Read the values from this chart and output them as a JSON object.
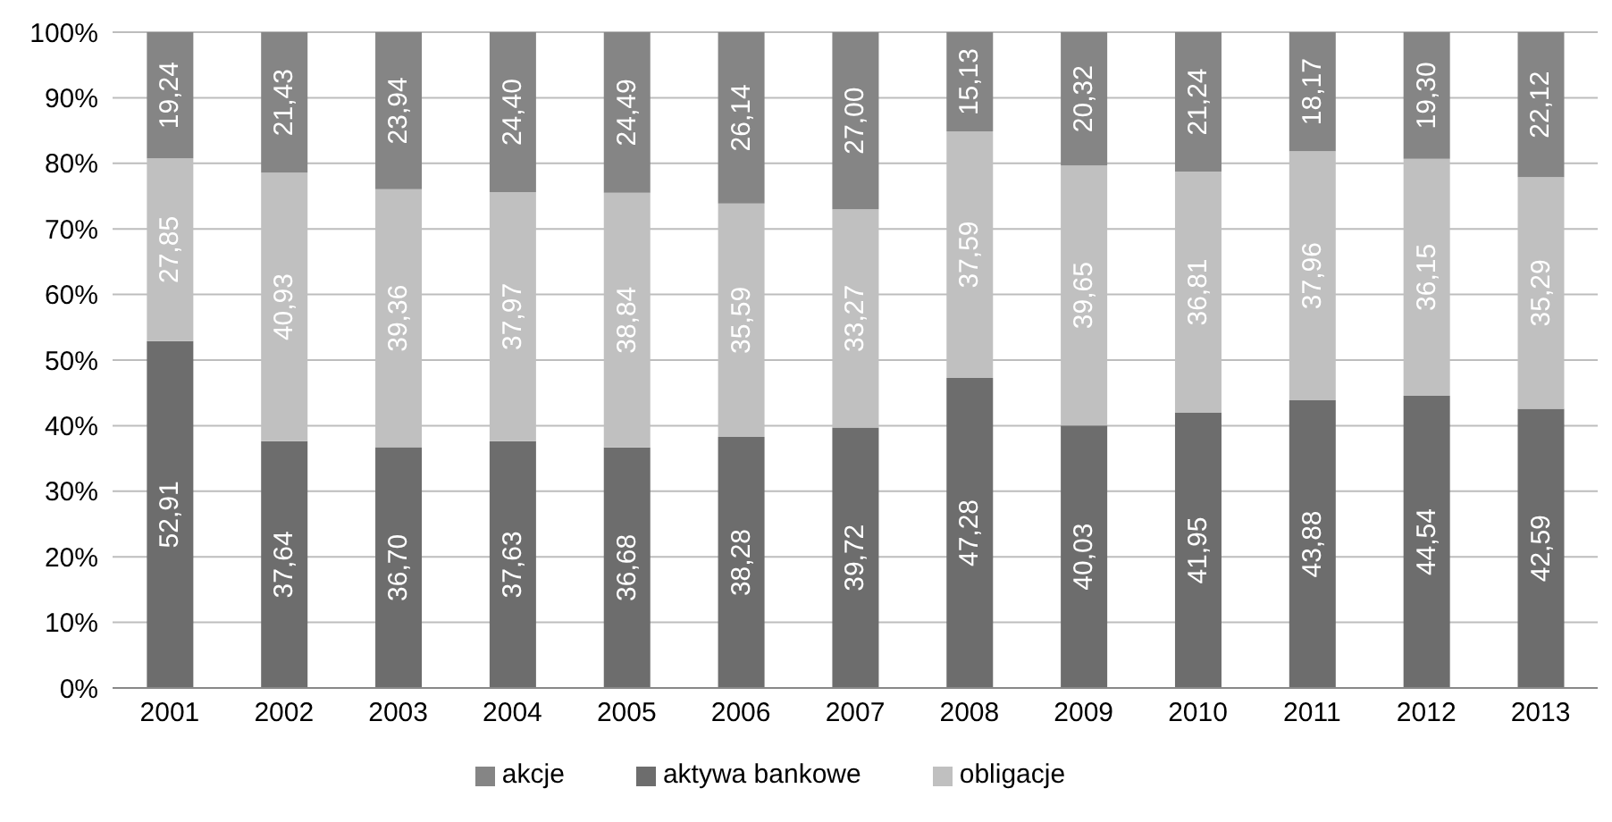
{
  "chart_data": {
    "type": "bar",
    "stacked": true,
    "categories": [
      "2001",
      "2002",
      "2003",
      "2004",
      "2005",
      "2006",
      "2007",
      "2008",
      "2009",
      "2010",
      "2011",
      "2012",
      "2013"
    ],
    "series": [
      {
        "name": "aktywa bankowe",
        "color": "#6d6d6d",
        "values": [
          52.91,
          37.64,
          36.7,
          37.63,
          36.68,
          38.28,
          39.72,
          47.28,
          40.03,
          41.95,
          43.88,
          44.54,
          42.59
        ],
        "value_labels": [
          "52,91",
          "37,64",
          "36,70",
          "37,63",
          "36,68",
          "38,28",
          "39,72",
          "47,28",
          "40,03",
          "41,95",
          "43,88",
          "44,54",
          "42,59"
        ]
      },
      {
        "name": "obligacje",
        "color": "#c0c0c0",
        "values": [
          27.85,
          40.93,
          39.36,
          37.97,
          38.84,
          35.59,
          33.27,
          37.59,
          39.65,
          36.81,
          37.96,
          36.15,
          35.29
        ],
        "value_labels": [
          "27,85",
          "40,93",
          "39,36",
          "37,97",
          "38,84",
          "35,59",
          "33,27",
          "37,59",
          "39,65",
          "36,81",
          "37,96",
          "36,15",
          "35,29"
        ]
      },
      {
        "name": "akcje",
        "color": "#858585",
        "values": [
          19.24,
          21.43,
          23.94,
          24.4,
          24.49,
          26.14,
          27.0,
          15.13,
          20.32,
          21.24,
          18.17,
          19.3,
          22.12
        ],
        "value_labels": [
          "19,24",
          "21,43",
          "23,94",
          "24,40",
          "24,49",
          "26,14",
          "27,00",
          "15,13",
          "20,32",
          "21,24",
          "18,17",
          "19,30",
          "22,12"
        ]
      }
    ],
    "ylim": [
      0,
      100
    ],
    "yticks": [
      {
        "value": 0,
        "label": "0%"
      },
      {
        "value": 10,
        "label": "10%"
      },
      {
        "value": 20,
        "label": "20%"
      },
      {
        "value": 30,
        "label": "30%"
      },
      {
        "value": 40,
        "label": "40%"
      },
      {
        "value": 50,
        "label": "50%"
      },
      {
        "value": 60,
        "label": "60%"
      },
      {
        "value": 70,
        "label": "70%"
      },
      {
        "value": 80,
        "label": "80%"
      },
      {
        "value": 90,
        "label": "90%"
      },
      {
        "value": 100,
        "label": "100%"
      }
    ],
    "grid": "y",
    "legend": "bottom"
  }
}
